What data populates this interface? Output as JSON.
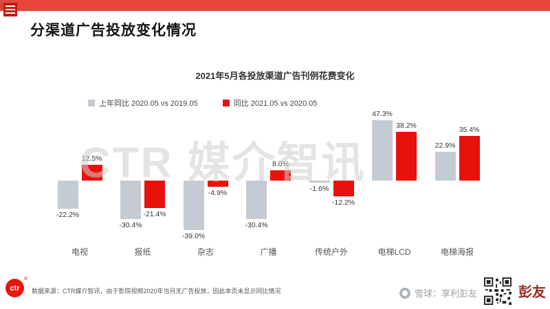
{
  "colors": {
    "top_bar": "#e8463c",
    "menu_square": "#c21b14",
    "series_prev": "#c5cbd3",
    "series_current": "#e8120c"
  },
  "header": {
    "page_title": "分渠道广告投放变化情况"
  },
  "chart": {
    "title": "2021年5月各投放渠道广告刊例花费变化",
    "watermark": "CTR 媒介智讯"
  },
  "chart_data": {
    "type": "bar",
    "categories": [
      "电视",
      "报纸",
      "杂志",
      "广播",
      "传统户外",
      "电梯LCD",
      "电梯海报"
    ],
    "series": [
      {
        "name": "上年同比 2020.05 vs 2019.05",
        "color": "#c5cbd3",
        "values": [
          -22.2,
          -30.4,
          -39.0,
          -30.4,
          -1.6,
          47.3,
          22.9
        ]
      },
      {
        "name": "同比 2021.05 vs 2020.05",
        "color": "#e8120c",
        "values": [
          12.5,
          -21.4,
          -4.9,
          8.0,
          -12.2,
          38.2,
          35.4
        ]
      }
    ],
    "value_suffix": "%",
    "ylim": [
      -45,
      55
    ],
    "baseline": 0,
    "grid": false,
    "legend_position": "top"
  },
  "footer": {
    "ctr_logo": "ctr",
    "ctr_reg": "®",
    "source_note": "数据来源：CTR媒介智讯，由于影院视频2020年当月无广告投放，因此本页未显示同比情况",
    "xueqiu_watermark": "雪球：享利彭友",
    "qr_caption": "彭友"
  }
}
